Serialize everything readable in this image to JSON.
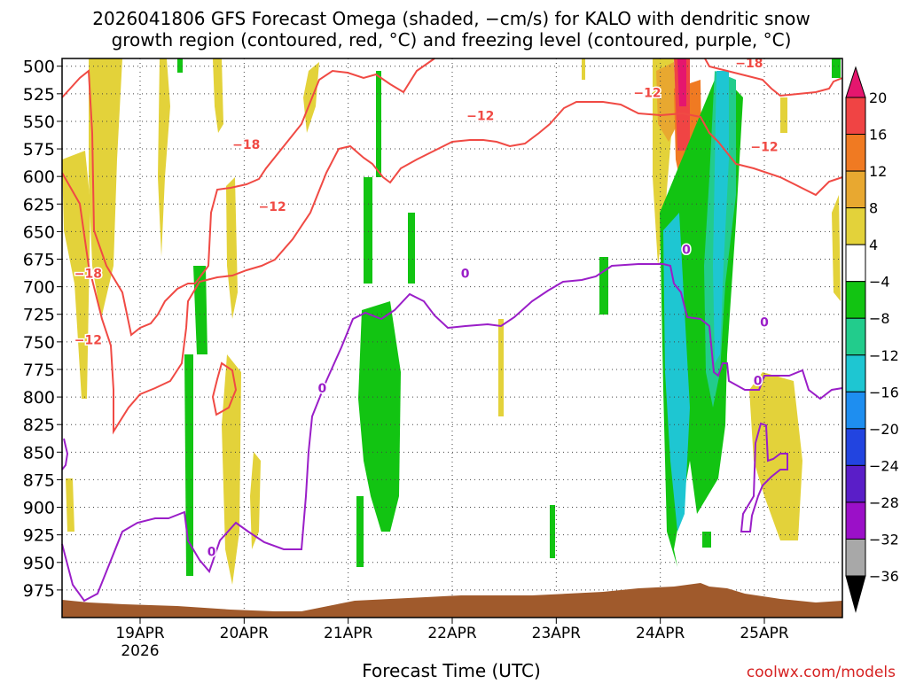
{
  "chart_data": {
    "type": "heatmap",
    "title": "2026041806 GFS Forecast Omega (shaded, −cm/s) for KALO with dendritic snow",
    "subtitle": "growth region (contoured, red, °C) and freezing level (contoured, purple, °C)",
    "xlabel": "Forecast Time (UTC)",
    "ylabel": "",
    "watermark": "coolwx.com/models",
    "x_ticks": [
      {
        "date": "2026-04-19",
        "label": "19APR",
        "sublabel": "2026"
      },
      {
        "date": "2026-04-20",
        "label": "20APR",
        "sublabel": ""
      },
      {
        "date": "2026-04-21",
        "label": "21APR",
        "sublabel": ""
      },
      {
        "date": "2026-04-22",
        "label": "22APR",
        "sublabel": ""
      },
      {
        "date": "2026-04-23",
        "label": "23APR",
        "sublabel": ""
      },
      {
        "date": "2026-04-24",
        "label": "24APR",
        "sublabel": ""
      },
      {
        "date": "2026-04-25",
        "label": "25APR",
        "sublabel": ""
      }
    ],
    "xlim": [
      "2026-04-18T06:00",
      "2026-04-25T18:00"
    ],
    "y_ticks": [
      500,
      525,
      550,
      575,
      600,
      625,
      650,
      675,
      700,
      725,
      750,
      775,
      800,
      825,
      850,
      875,
      900,
      925,
      950,
      975
    ],
    "ylim": [
      1000,
      493
    ],
    "grid": true,
    "colorbar": {
      "labels": [
        "20",
        "16",
        "12",
        "8",
        "4",
        "−4",
        "−8",
        "−12",
        "−16",
        "−20",
        "−24",
        "−28",
        "−32",
        "−36"
      ],
      "colors": [
        "#e5166e",
        "#f04444",
        "#f07a22",
        "#e8a830",
        "#e3d23a",
        "#ffffff",
        "#12c412",
        "#22cc8c",
        "#1ec6d2",
        "#1e8ef0",
        "#2244e0",
        "#5a1ec8",
        "#9b10c8",
        "#a8a8a8"
      ]
    },
    "contour_labels": [
      {
        "x": "2026-04-20T00:30",
        "p": 575,
        "text": "−18",
        "color": "#f04a44"
      },
      {
        "x": "2026-04-18T12:00",
        "p": 692,
        "text": "−18",
        "color": "#f04a44"
      },
      {
        "x": "2026-04-20T06:30",
        "p": 631,
        "text": "−12",
        "color": "#f04a44"
      },
      {
        "x": "2026-04-18T12:00",
        "p": 752,
        "text": "−12",
        "color": "#f04a44"
      },
      {
        "x": "2026-04-22T06:30",
        "p": 549,
        "text": "−12",
        "color": "#f04a44"
      },
      {
        "x": "2026-04-23T21:00",
        "p": 528,
        "text": "−12",
        "color": "#f04a44"
      },
      {
        "x": "2026-04-24T20:30",
        "p": 501,
        "text": "−18",
        "color": "#f04a44"
      },
      {
        "x": "2026-04-25T00:00",
        "p": 577,
        "text": "−12",
        "color": "#f04a44"
      },
      {
        "x": "2026-04-19T16:30",
        "p": 944,
        "text": "0",
        "color": "#9a1ec8"
      },
      {
        "x": "2026-04-20T18:00",
        "p": 796,
        "text": "0",
        "color": "#9a1ec8"
      },
      {
        "x": "2026-04-22T03:00",
        "p": 692,
        "text": "0",
        "color": "#9a1ec8"
      },
      {
        "x": "2026-04-24T06:00",
        "p": 670,
        "text": "0",
        "color": "#9a1ec8"
      },
      {
        "x": "2026-04-25T00:00",
        "p": 736,
        "text": "0",
        "color": "#9a1ec8"
      },
      {
        "x": "2026-04-24T22:30",
        "p": 789,
        "text": "0",
        "color": "#9a1ec8"
      }
    ]
  }
}
